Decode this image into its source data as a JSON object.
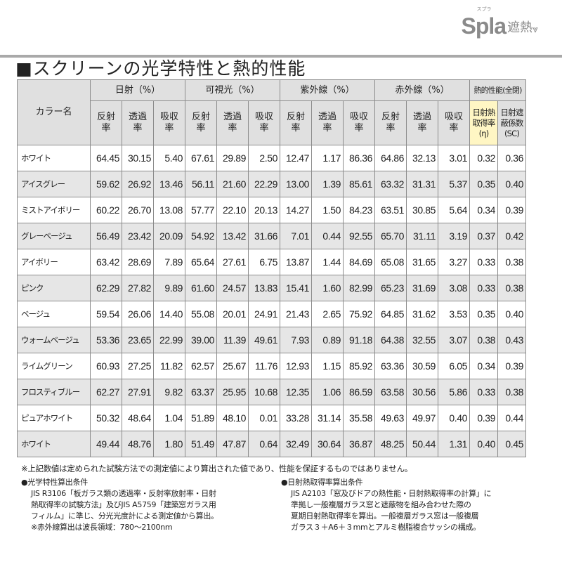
{
  "logo": {
    "name": "Spla",
    "ruby": "スプラ",
    "suffix": "遮熱"
  },
  "title": "■スクリーンの光学特性と熱的性能",
  "table": {
    "name_header": "カラー名",
    "groups": [
      "日射（%）",
      "可視光（%）",
      "紫外線（%）",
      "赤外線（%）",
      "熱的性能(全閉)"
    ],
    "sub_reflect": "反射率",
    "sub_transmit": "透過率",
    "sub_absorb": "吸収率",
    "sub_eta": "日射熱取得率(η)",
    "sub_sc": "日射遮蔽係数(SC)",
    "rows": [
      {
        "name": "ホワイト",
        "v": [
          "64.45",
          "30.15",
          "5.40",
          "67.61",
          "29.89",
          "2.50",
          "12.47",
          "1.17",
          "86.36",
          "64.86",
          "32.13",
          "3.01",
          "0.32",
          "0.36"
        ]
      },
      {
        "name": "アイスグレー",
        "v": [
          "59.62",
          "26.92",
          "13.46",
          "56.11",
          "21.60",
          "22.29",
          "13.00",
          "1.39",
          "85.61",
          "63.32",
          "31.31",
          "5.37",
          "0.35",
          "0.40"
        ]
      },
      {
        "name": "ミストアイボリー",
        "v": [
          "60.22",
          "26.70",
          "13.08",
          "57.77",
          "22.10",
          "20.13",
          "14.27",
          "1.50",
          "84.23",
          "63.51",
          "30.85",
          "5.64",
          "0.34",
          "0.39"
        ]
      },
      {
        "name": "グレーベージュ",
        "v": [
          "56.49",
          "23.42",
          "20.09",
          "54.92",
          "13.42",
          "31.66",
          "7.01",
          "0.44",
          "92.55",
          "65.70",
          "31.11",
          "3.19",
          "0.37",
          "0.42"
        ]
      },
      {
        "name": "アイボリー",
        "v": [
          "63.42",
          "28.69",
          "7.89",
          "65.64",
          "27.61",
          "6.75",
          "13.87",
          "1.44",
          "84.69",
          "65.08",
          "31.65",
          "3.27",
          "0.33",
          "0.38"
        ]
      },
      {
        "name": "ピンク",
        "v": [
          "62.29",
          "27.82",
          "9.89",
          "61.60",
          "24.57",
          "13.83",
          "15.41",
          "1.60",
          "82.99",
          "65.23",
          "31.69",
          "3.08",
          "0.33",
          "0.38"
        ]
      },
      {
        "name": "ベージュ",
        "v": [
          "59.54",
          "26.06",
          "14.40",
          "55.08",
          "20.01",
          "24.91",
          "21.43",
          "2.65",
          "75.92",
          "64.85",
          "31.62",
          "3.53",
          "0.35",
          "0.40"
        ]
      },
      {
        "name": "ウォームベージュ",
        "v": [
          "53.36",
          "23.65",
          "22.99",
          "39.00",
          "11.39",
          "49.61",
          "7.93",
          "0.89",
          "91.18",
          "64.38",
          "32.55",
          "3.07",
          "0.38",
          "0.43"
        ]
      },
      {
        "name": "ライムグリーン",
        "v": [
          "60.93",
          "27.25",
          "11.82",
          "62.57",
          "25.67",
          "11.76",
          "12.93",
          "1.15",
          "85.92",
          "63.36",
          "30.59",
          "6.05",
          "0.34",
          "0.39"
        ]
      },
      {
        "name": "フロスティブルー",
        "v": [
          "62.27",
          "27.91",
          "9.82",
          "63.37",
          "25.95",
          "10.68",
          "12.35",
          "1.06",
          "86.59",
          "63.58",
          "30.56",
          "5.86",
          "0.33",
          "0.38"
        ]
      },
      {
        "name": "ピュアホワイト",
        "v": [
          "50.32",
          "48.64",
          "1.04",
          "51.89",
          "48.10",
          "0.01",
          "33.28",
          "31.14",
          "35.58",
          "49.63",
          "49.97",
          "0.40",
          "0.39",
          "0.44"
        ]
      },
      {
        "name": "ホワイト",
        "v": [
          "49.44",
          "48.76",
          "1.80",
          "51.49",
          "47.87",
          "0.64",
          "32.49",
          "30.64",
          "36.87",
          "48.25",
          "50.44",
          "1.31",
          "0.40",
          "0.45"
        ]
      }
    ]
  },
  "note": "※上記数値は定められた試験方法での測定値により算出された値であり、性能を保証するものではありません。",
  "optical": {
    "heading": "●光学特性算出条件",
    "lines": [
      "JIS R3106「板ガラス類の透過率・反射率放射率・日射",
      "熱取得率の試験方法」及びJIS A5759「建築窓ガラス用",
      "フィルム」に準じ、分光光度計による測定値から算出。",
      "※赤外線算出は波長領域：780～2100nm"
    ]
  },
  "solar": {
    "heading": "●日射熱取得率算出条件",
    "lines": [
      "JIS A2103「窓及びドアの熱性能・日射熱取得率の計算」に",
      "準拠し一般複層ガラス窓と遮蔽物を組み合わせた際の",
      "夏期日射熱取得率を算出。一般複層ガラス窓は一般複層",
      "ガラス３＋A6＋３mmとアルミ樹脂複合サッシの構成。"
    ]
  }
}
